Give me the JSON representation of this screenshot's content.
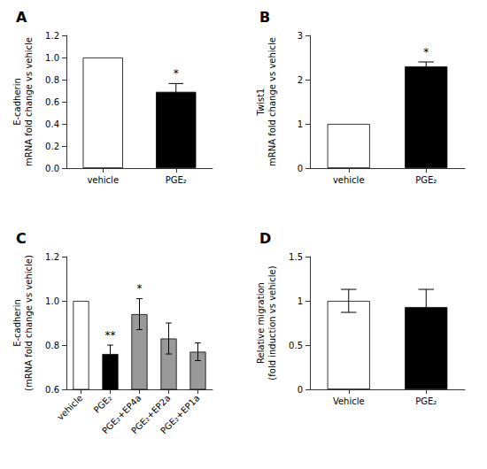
{
  "chart_data": [
    {
      "type": "bar",
      "title": "A",
      "categories": [
        "vehicle",
        "PGE₂"
      ],
      "values": [
        1.0,
        0.69
      ],
      "errors": [
        0.0,
        0.075
      ],
      "colors": [
        "white",
        "black"
      ],
      "ylabel": "E-cadherin\nmRNA fold change vs vehicle",
      "ylim": [
        0.0,
        1.2
      ],
      "yticks": [
        {
          "value": 0.0,
          "label": "0.0"
        },
        0.2,
        0.4,
        0.6,
        0.8,
        {
          "value": 1.0,
          "label": "1.0"
        },
        1.2
      ],
      "annotations": [
        {
          "text": "*",
          "category": "PGE₂"
        }
      ],
      "grid": false
    },
    {
      "type": "bar",
      "title": "B",
      "categories": [
        "vehicle",
        "PGE₂"
      ],
      "values": [
        1.0,
        2.3
      ],
      "errors": [
        0.0,
        0.1
      ],
      "colors": [
        "white",
        "black"
      ],
      "ylabel": "Twist1\nmRNA fold change vs vehicle",
      "ylim": [
        0,
        3
      ],
      "yticks": [
        0,
        1,
        2,
        3
      ],
      "annotations": [
        {
          "text": "*",
          "category": "PGE₂"
        }
      ],
      "grid": false
    },
    {
      "type": "bar",
      "title": "C",
      "categories": [
        "vehicle",
        "PGE₂",
        "PGE₂+EP4a",
        "PGE₂+EP2a",
        "PGE₂+EP1a"
      ],
      "values": [
        1.0,
        0.76,
        0.94,
        0.83,
        0.77
      ],
      "errors": [
        0.0,
        0.04,
        0.07,
        0.07,
        0.04
      ],
      "colors": [
        "white",
        "black",
        "#999999",
        "#999999",
        "#999999"
      ],
      "ylabel": "E-cadherin\n(mRNA fold change vs vehicle)",
      "ylim": [
        0.6,
        1.2
      ],
      "yticks": [
        0.6,
        0.8,
        {
          "value": 1.0,
          "label": "1.0"
        },
        1.2
      ],
      "annotations": [
        {
          "text": "**",
          "category": "PGE₂"
        },
        {
          "text": "*",
          "category": "PGE₂+EP4a"
        }
      ],
      "grid": false
    },
    {
      "type": "bar",
      "title": "D",
      "categories": [
        "Vehicle",
        "PGE₂"
      ],
      "values": [
        1.0,
        0.93
      ],
      "errors": [
        0.13,
        0.2
      ],
      "colors": [
        "white",
        "black"
      ],
      "ylabel": "Relative migration\n(fold induction vs vehicle)",
      "ylim": [
        0.0,
        1.5
      ],
      "yticks": [
        0,
        0.5,
        1,
        1.5
      ],
      "grid": false
    }
  ]
}
